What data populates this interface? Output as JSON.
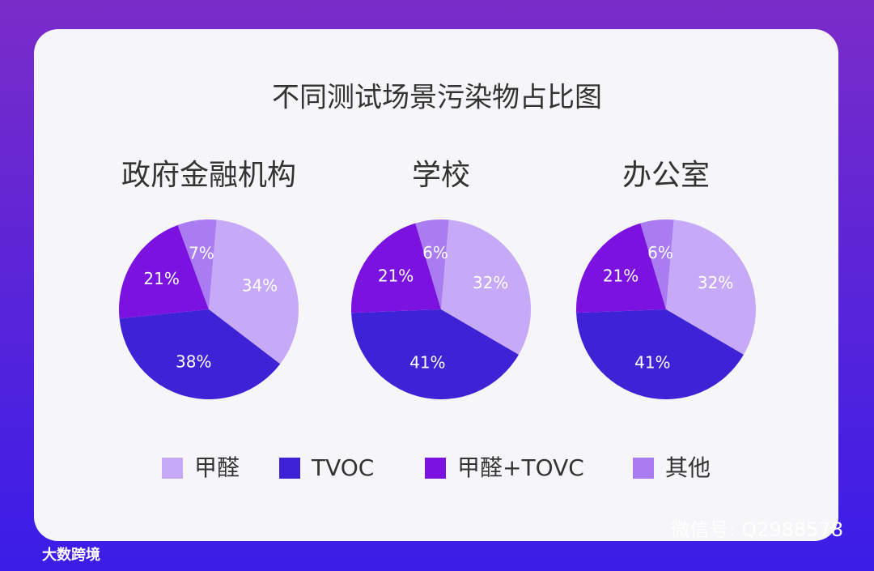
{
  "title": "不同测试场景污染物占比图",
  "legend": {
    "categories": [
      "甲醛",
      "TVOC",
      "甲醛+TOVC",
      "其他"
    ],
    "colors": [
      "#c6aaf8",
      "#3d22d6",
      "#7b12e0",
      "#a97cf2"
    ]
  },
  "chart_data": [
    {
      "type": "pie",
      "title": "政府金融机构",
      "values": [
        34,
        38,
        21,
        7
      ],
      "value_labels": [
        "34%",
        "38%",
        "21%",
        "7%"
      ]
    },
    {
      "type": "pie",
      "title": "学校",
      "values": [
        32,
        41,
        21,
        6
      ],
      "value_labels": [
        "32%",
        "41%",
        "21%",
        "6%"
      ]
    },
    {
      "type": "pie",
      "title": "办公室",
      "values": [
        32,
        41,
        21,
        6
      ],
      "value_labels": [
        "32%",
        "41%",
        "21%",
        "6%"
      ]
    }
  ],
  "watermark": "微信号: Q2988578",
  "logo": "大数跨境"
}
